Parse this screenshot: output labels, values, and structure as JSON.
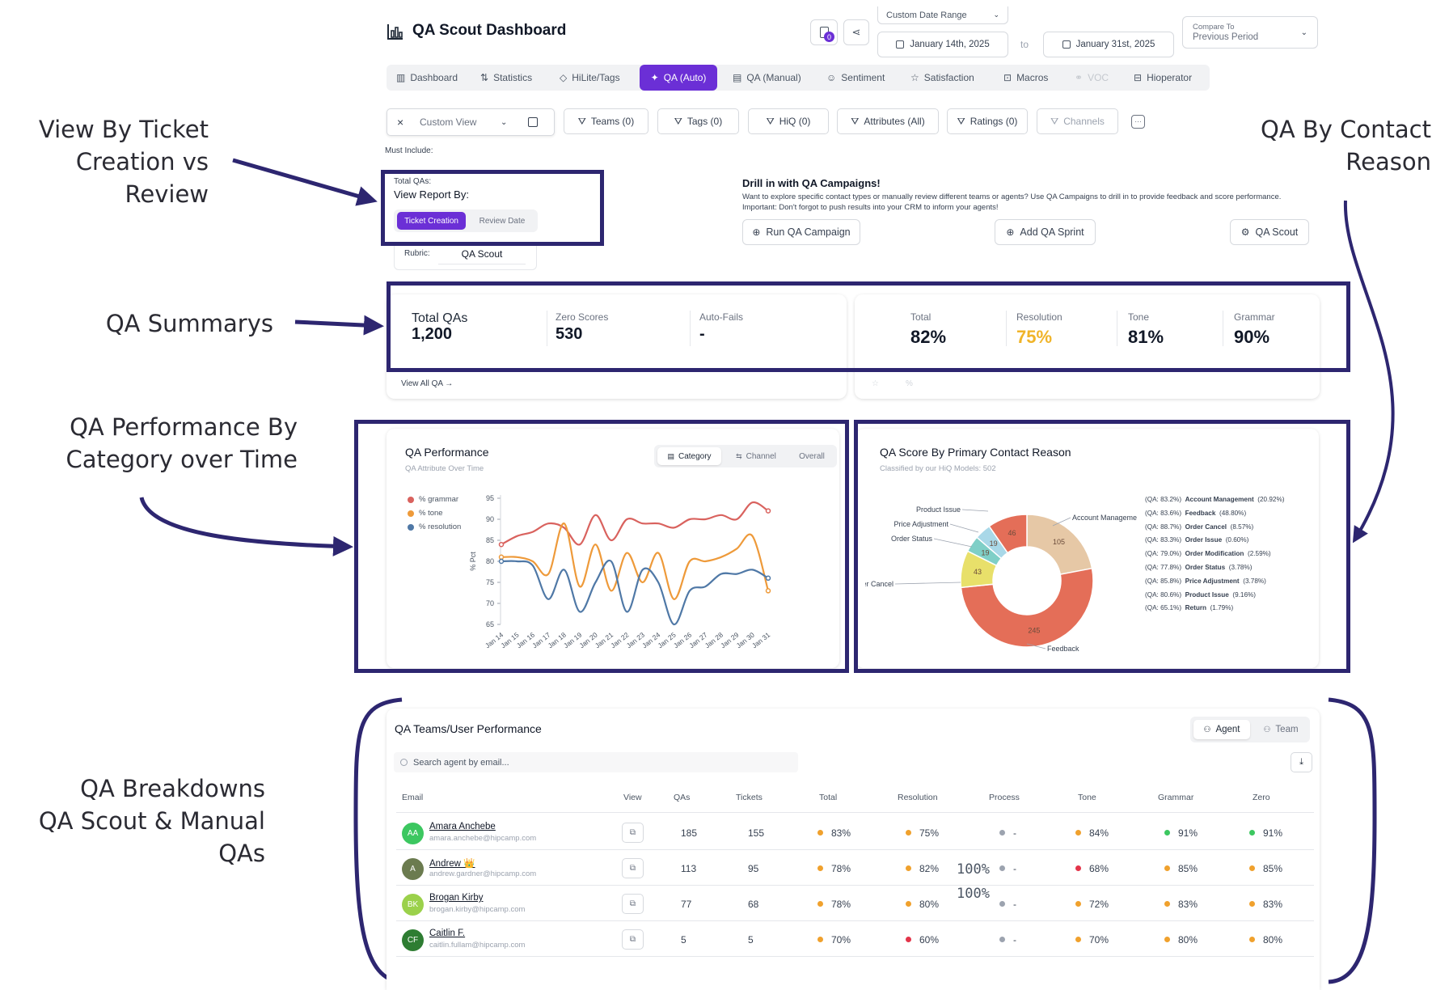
{
  "annotations": {
    "view_by": [
      "View By Ticket",
      "Creation vs",
      "Review"
    ],
    "contact_reason": [
      "QA By Contact",
      "Reason"
    ],
    "summaries": "QA Summarys",
    "performance": [
      "QA Performance By",
      "Category over Time"
    ],
    "breakdowns": [
      "QA Breakdowns",
      "QA Scout & Manual QAs"
    ]
  },
  "header": {
    "title": "QA Scout Dashboard",
    "notif_count": "0",
    "date_range_label": "Custom Date Range",
    "date_start": "January 14th, 2025",
    "date_to": "to",
    "date_end": "January 31st, 2025",
    "compare_label": "Compare To",
    "compare_value": "Previous Period"
  },
  "nav": {
    "items": [
      "Dashboard",
      "Statistics",
      "HiLite/Tags",
      "QA (Auto)",
      "QA (Manual)",
      "Sentiment",
      "Satisfaction",
      "Macros",
      "VOC",
      "Hioperator"
    ]
  },
  "filters": {
    "clear": "×",
    "view": "Custom View",
    "teams": "Teams (0)",
    "tags": "Tags (0)",
    "hiq": "HiQ (0)",
    "attributes": "Attributes (All)",
    "ratings": "Ratings (0)",
    "channels": "Channels",
    "must_include": "Must Include:"
  },
  "report": {
    "total_qas_label": "Total QAs:",
    "view_by_label": "View Report By:",
    "ticket_creation": "Ticket Creation",
    "review_date": "Review Date",
    "rubric_label": "Rubric:",
    "rubric_value": "QA Scout"
  },
  "drill": {
    "title": "Drill in with QA Campaigns!",
    "desc": "Want to explore specific contact types or manually review different teams or agents? Use QA Campaigns to drill in to provide feedback and score performance.",
    "important": "Important: Don't forgot to push results into your CRM to inform your agents!",
    "run": "Run QA Campaign",
    "sprint": "Add QA Sprint",
    "scout": "QA Scout"
  },
  "summary": {
    "total_qas_label": "Total QAs",
    "total_qas": "1,200",
    "zero_label": "Zero Scores",
    "zero": "530",
    "autofail_label": "Auto-Fails",
    "autofail": "-",
    "view_all": "View All QA →",
    "scores": [
      {
        "label": "Total",
        "value": "82%",
        "color": "#111827"
      },
      {
        "label": "Resolution",
        "value": "75%",
        "color": "#f0b429"
      },
      {
        "label": "Tone",
        "value": "81%",
        "color": "#111827"
      },
      {
        "label": "Grammar",
        "value": "90%",
        "color": "#111827"
      }
    ]
  },
  "performance": {
    "title": "QA Performance",
    "subtitle": "QA Attribute Over Time",
    "tabs": [
      "Category",
      "Channel",
      "Overall"
    ]
  },
  "contact": {
    "title": "QA Score By Primary Contact Reason",
    "subtitle": "Classified by our HiQ Models: 502",
    "legend": [
      {
        "qa": "(QA: 83.2%)",
        "name": "Account Management",
        "pct": "(20.92%)"
      },
      {
        "qa": "(QA: 83.6%)",
        "name": "Feedback",
        "pct": "(48.80%)"
      },
      {
        "qa": "(QA: 88.7%)",
        "name": "Order Cancel",
        "pct": "(8.57%)"
      },
      {
        "qa": "(QA: 83.3%)",
        "name": "Order Issue",
        "pct": "(0.60%)"
      },
      {
        "qa": "(QA: 79.0%)",
        "name": "Order Modification",
        "pct": "(2.59%)"
      },
      {
        "qa": "(QA: 77.8%)",
        "name": "Order Status",
        "pct": "(3.78%)"
      },
      {
        "qa": "(QA: 85.8%)",
        "name": "Price Adjustment",
        "pct": "(3.78%)"
      },
      {
        "qa": "(QA: 80.6%)",
        "name": "Product Issue",
        "pct": "(9.16%)"
      },
      {
        "qa": "(QA: 65.1%)",
        "name": "Return",
        "pct": "(1.79%)"
      }
    ],
    "callouts": [
      "Product Issue",
      "Price Adjustment",
      "Order Status",
      "der Cancel",
      "Account Manageme",
      "Feedback"
    ]
  },
  "chart_data": [
    {
      "type": "line",
      "ylabel": "% Pct",
      "ylim": [
        65,
        95
      ],
      "yticks": [
        65,
        70,
        75,
        80,
        85,
        90,
        95
      ],
      "x": [
        "Jan 14",
        "Jan 15",
        "Jan 16",
        "Jan 17",
        "Jan 18",
        "Jan 19",
        "Jan 20",
        "Jan 21",
        "Jan 22",
        "Jan 23",
        "Jan 24",
        "Jan 25",
        "Jan 26",
        "Jan 27",
        "Jan 28",
        "Jan 29",
        "Jan 30",
        "Jan 31"
      ],
      "legend_position": "top-left",
      "series": [
        {
          "name": "% grammar",
          "color": "#d9625e",
          "values": [
            84,
            86,
            87,
            89,
            88,
            84,
            91,
            85,
            90,
            89,
            89,
            88,
            90,
            90,
            91,
            90,
            94,
            92
          ]
        },
        {
          "name": "% tone",
          "color": "#ee9a3a",
          "values": [
            81,
            81,
            80,
            77,
            89,
            74,
            84,
            73,
            82,
            75,
            82,
            71,
            80,
            80,
            81,
            83,
            86,
            73
          ]
        },
        {
          "name": "% resolution",
          "color": "#4f78a6",
          "values": [
            80,
            80,
            79,
            71,
            78,
            68,
            75,
            80,
            68,
            78,
            75,
            65,
            73,
            74,
            77,
            77,
            78,
            76
          ]
        }
      ]
    },
    {
      "type": "pie",
      "variant": "donut",
      "labels": [
        "Account Management",
        "Feedback",
        "Order Cancel",
        "Order Status",
        "Price Adjustment",
        "Product Issue"
      ],
      "values": [
        105,
        245,
        43,
        19,
        19,
        46
      ],
      "colors": [
        "#e6c8a6",
        "#e46e58",
        "#e8e06a",
        "#7fcfc7",
        "#a9d8e8",
        "#e46e58"
      ]
    }
  ],
  "table": {
    "title": "QA Teams/User Performance",
    "toggle": [
      "Agent",
      "Team"
    ],
    "search_placeholder": "Search agent by email...",
    "headers": [
      "Email",
      "View",
      "QAs",
      "Tickets",
      "Total",
      "Resolution",
      "Process",
      "Tone",
      "Grammar",
      "Zero"
    ],
    "overlay": [
      "100%",
      "100%"
    ],
    "rows": [
      {
        "initials": "AA",
        "avatar": "#3cc760",
        "name": "Amara Anchebe",
        "email": "amara.anchebe@hipcamp.com",
        "qas": "185",
        "tickets": "155",
        "total": [
          "83%",
          "#f0a12d"
        ],
        "resolution": [
          "75%",
          "#f0a12d"
        ],
        "process": [
          "-",
          "#9ca3af"
        ],
        "tone": [
          "84%",
          "#f0a12d"
        ],
        "grammar": [
          "91%",
          "#3cc760"
        ],
        "zero": [
          "91%",
          "#3cc760"
        ]
      },
      {
        "initials": "A",
        "avatar": "#6b7b4f",
        "name": "Andrew 👑",
        "email": "andrew.gardner@hipcamp.com",
        "qas": "113",
        "tickets": "95",
        "total": [
          "78%",
          "#f0a12d"
        ],
        "resolution": [
          "82%",
          "#f0a12d"
        ],
        "process": [
          "-",
          "#9ca3af"
        ],
        "tone": [
          "68%",
          "#e3344a"
        ],
        "grammar": [
          "85%",
          "#f0a12d"
        ],
        "zero": [
          "85%",
          "#f0a12d"
        ]
      },
      {
        "initials": "BK",
        "avatar": "#9bd14b",
        "name": "Brogan Kirby",
        "email": "brogan.kirby@hipcamp.com",
        "qas": "77",
        "tickets": "68",
        "total": [
          "78%",
          "#f0a12d"
        ],
        "resolution": [
          "80%",
          "#f0a12d"
        ],
        "process": [
          "-",
          "#9ca3af"
        ],
        "tone": [
          "72%",
          "#f0a12d"
        ],
        "grammar": [
          "83%",
          "#f0a12d"
        ],
        "zero": [
          "83%",
          "#f0a12d"
        ]
      },
      {
        "initials": "CF",
        "avatar": "#2e7d32",
        "name": "Caitlin F.",
        "email": "caitlin.fullam@hipcamp.com",
        "qas": "5",
        "tickets": "5",
        "total": [
          "70%",
          "#f0a12d"
        ],
        "resolution": [
          "60%",
          "#e3344a"
        ],
        "process": [
          "-",
          "#9ca3af"
        ],
        "tone": [
          "70%",
          "#f0a12d"
        ],
        "grammar": [
          "80%",
          "#f0a12d"
        ],
        "zero": [
          "80%",
          "#f0a12d"
        ]
      }
    ]
  }
}
